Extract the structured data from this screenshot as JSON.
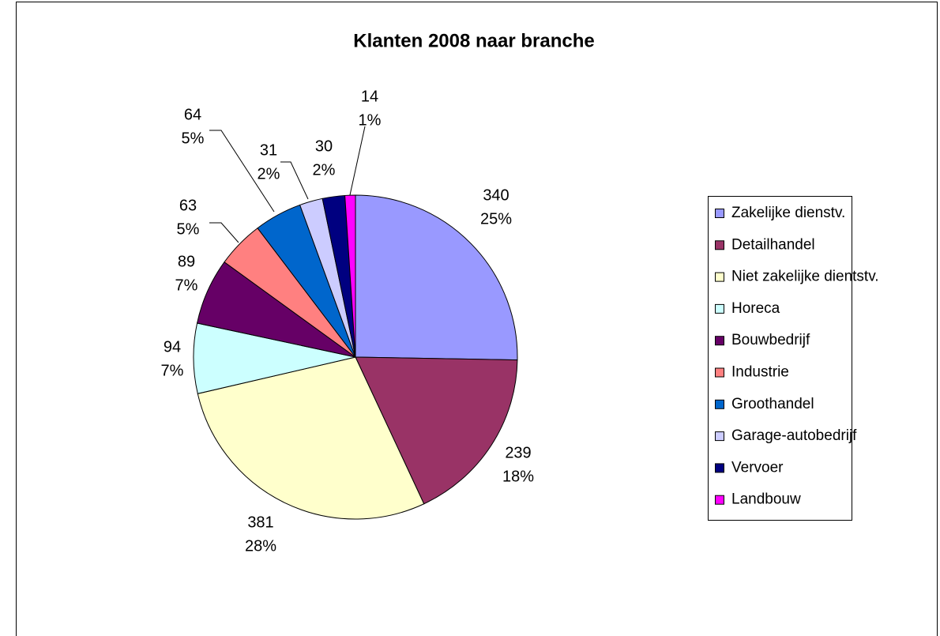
{
  "chart_data": {
    "type": "pie",
    "title": "Klanten 2008 naar branche",
    "categories": [
      "Zakelijke dienstv.",
      "Detailhandel",
      "Niet zakelijke dientstv.",
      "Horeca",
      "Bouwbedrijf",
      "Industrie",
      "Groothandel",
      "Garage-autobedrijf",
      "Vervoer",
      "Landbouw"
    ],
    "values": [
      340,
      239,
      381,
      94,
      89,
      63,
      64,
      31,
      30,
      14
    ],
    "percent_labels": [
      "25%",
      "18%",
      "28%",
      "7%",
      "7%",
      "5%",
      "5%",
      "2%",
      "2%",
      "1%"
    ],
    "colors": [
      "#9999FF",
      "#993366",
      "#FFFFCC",
      "#CCFFFF",
      "#660066",
      "#FF8080",
      "#0066CC",
      "#CCCCFF",
      "#000080",
      "#FF00FF"
    ],
    "legend": "right"
  }
}
